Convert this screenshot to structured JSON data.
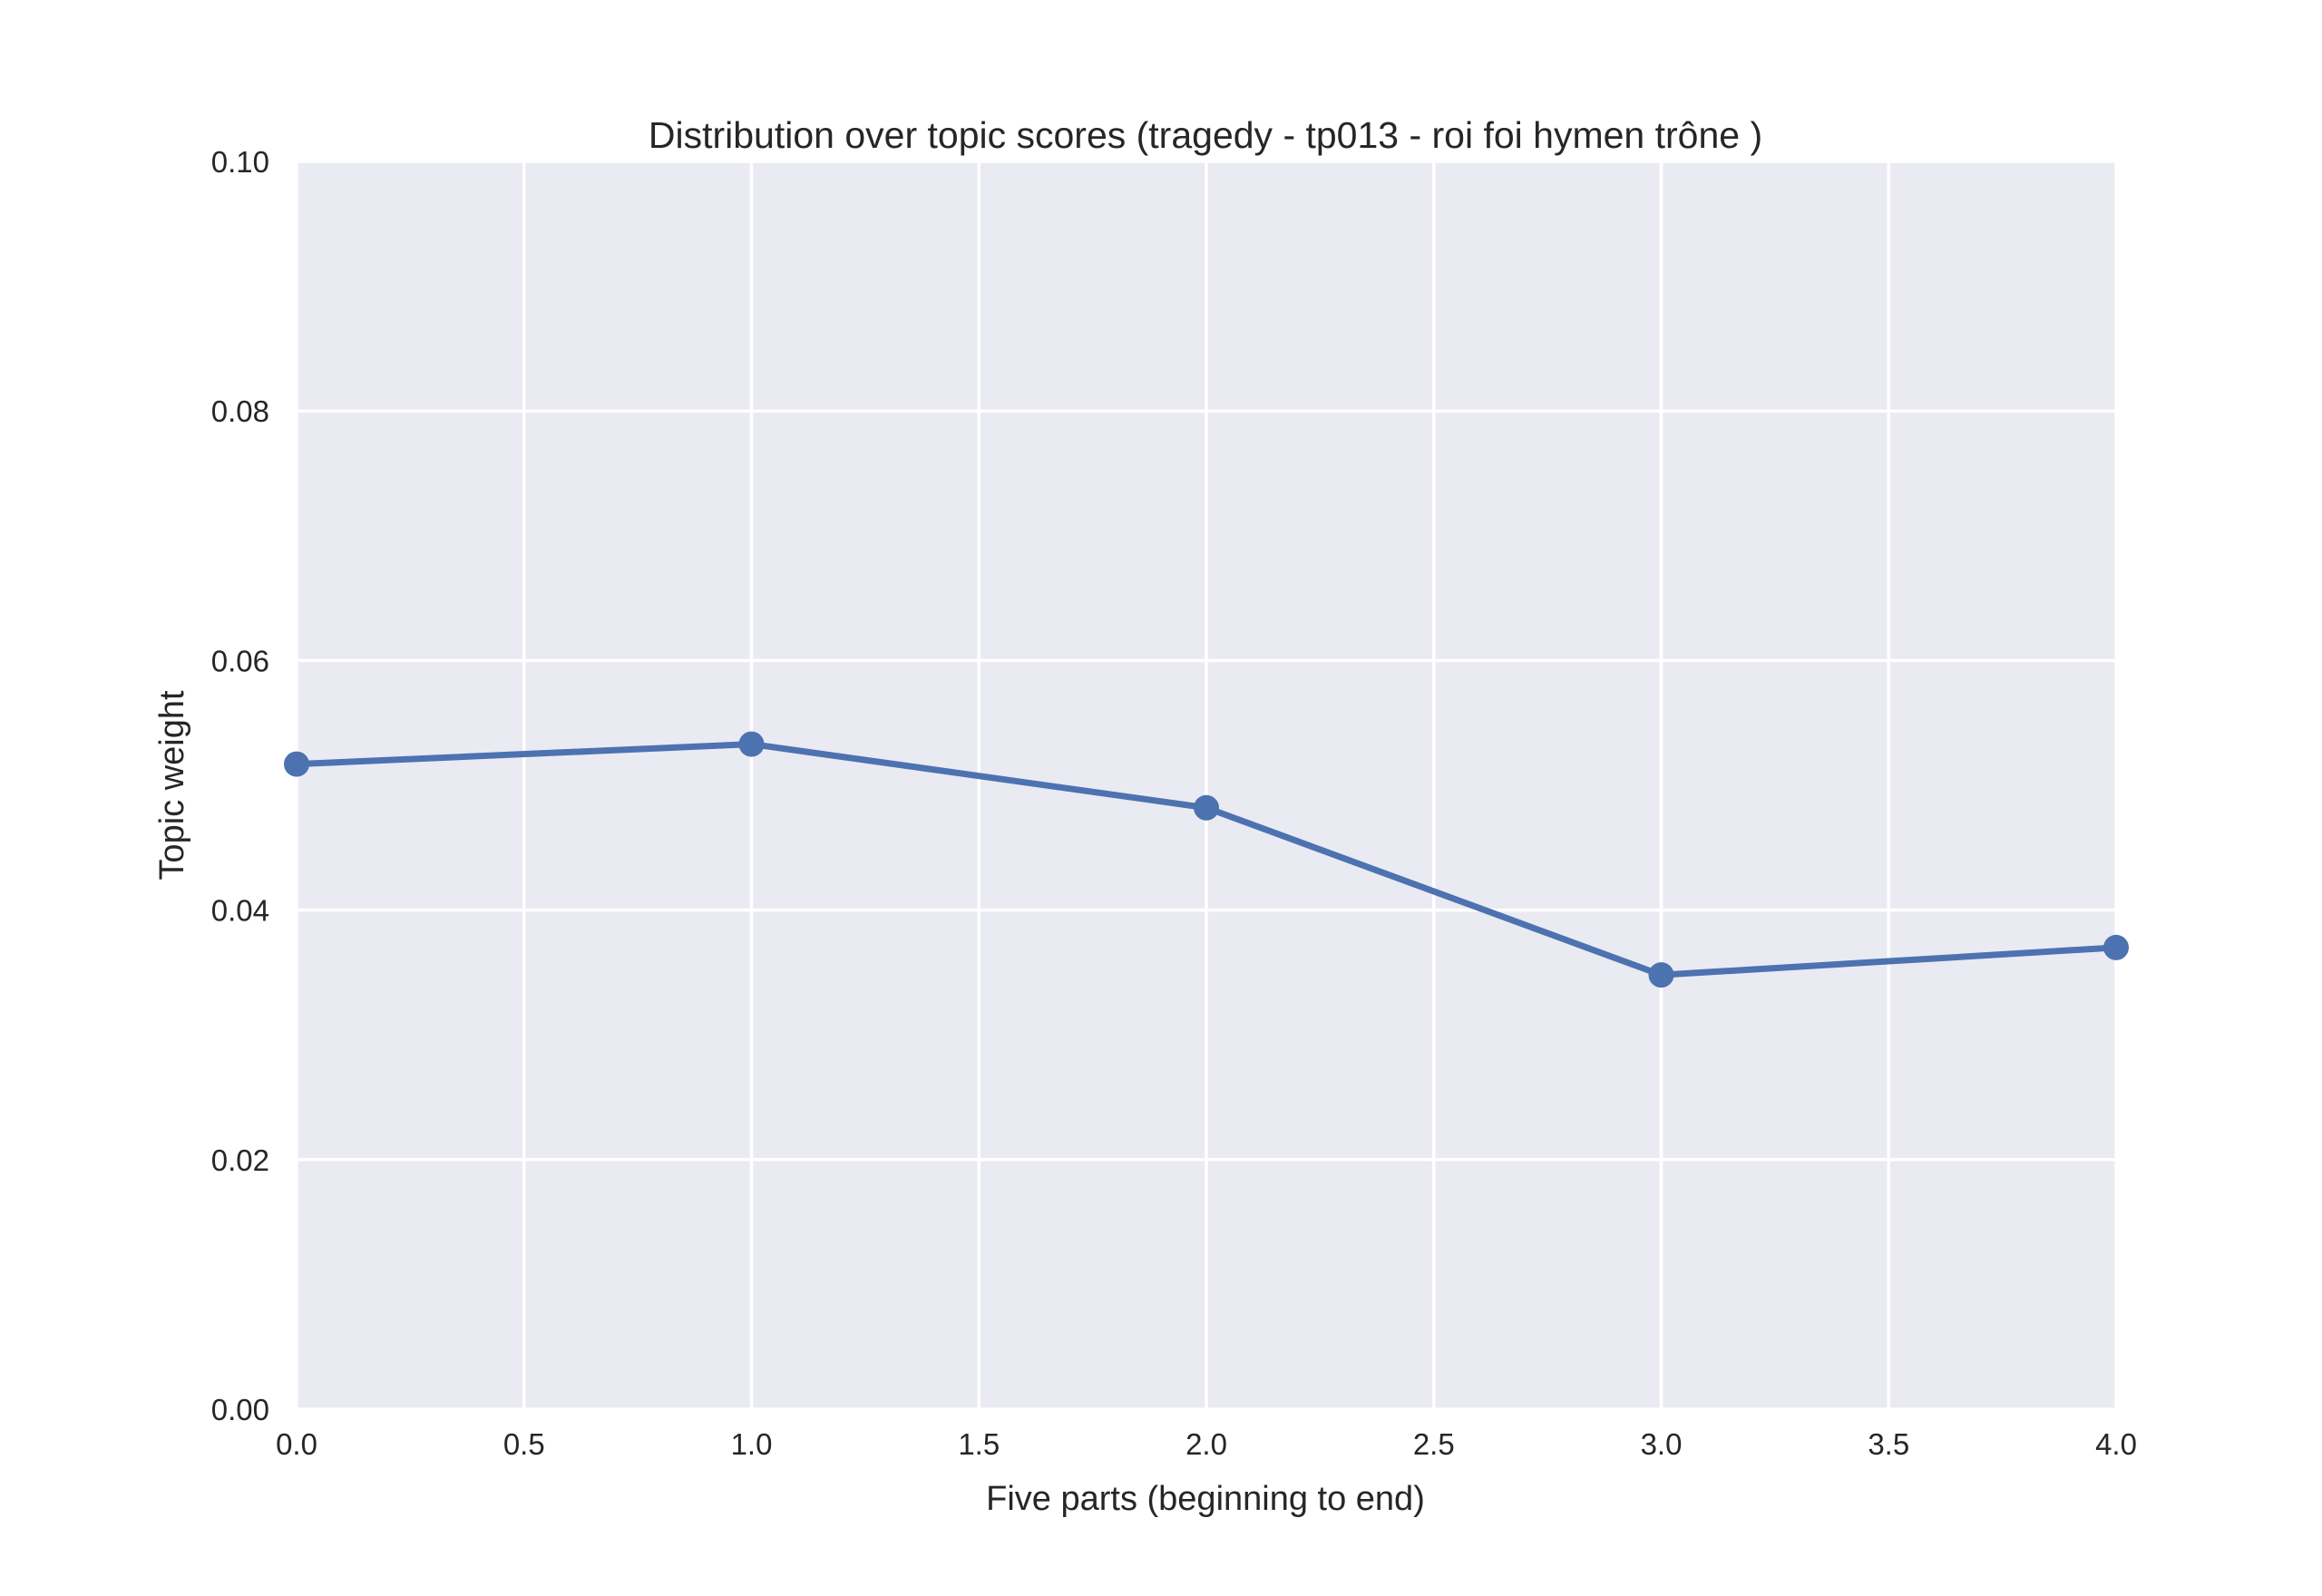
{
  "colors": {
    "background": "#ffffff",
    "plot_background": "#eaeaf2",
    "grid": "#ffffff",
    "series": "#4c72b0",
    "text": "#262626"
  },
  "chart_data": {
    "type": "line",
    "title": "Distribution over topic scores (tragedy - tp013 - roi foi hymen trône )",
    "xlabel": "Five parts (beginning to end)",
    "ylabel": "Topic weight",
    "xlim": [
      0.0,
      4.0
    ],
    "ylim": [
      0.0,
      0.1
    ],
    "x_ticks": [
      "0.0",
      "0.5",
      "1.0",
      "1.5",
      "2.0",
      "2.5",
      "3.0",
      "3.5",
      "4.0"
    ],
    "y_ticks": [
      "0.00",
      "0.02",
      "0.04",
      "0.06",
      "0.08",
      "0.10"
    ],
    "grid": true,
    "marker": "circle",
    "series": [
      {
        "x": [
          0,
          1,
          2,
          3,
          4
        ],
        "values": [
          0.0517,
          0.0533,
          0.0482,
          0.0348,
          0.037
        ]
      }
    ]
  }
}
